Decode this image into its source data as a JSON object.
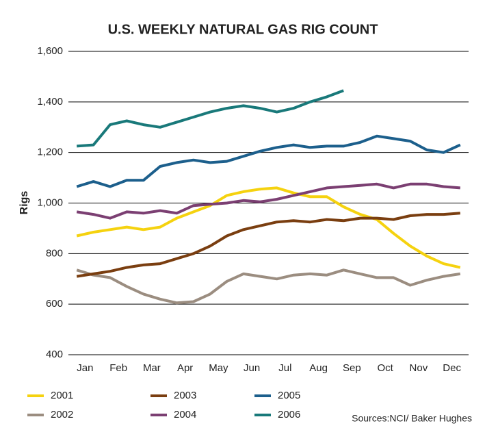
{
  "chart_data": {
    "type": "line",
    "title": "U.S. WEEKLY NATURAL GAS RIG COUNT",
    "y_label": "Rigs",
    "source": "Sources:NCI/ Baker Hughes",
    "xlim": [
      -0.5,
      23.5
    ],
    "xticks": [
      {
        "value": 0.5,
        "label": "Jan"
      },
      {
        "value": 2.5,
        "label": "Feb"
      },
      {
        "value": 4.5,
        "label": "Mar"
      },
      {
        "value": 6.5,
        "label": "Apr"
      },
      {
        "value": 8.5,
        "label": "May"
      },
      {
        "value": 10.5,
        "label": "Jun"
      },
      {
        "value": 12.5,
        "label": "Jul"
      },
      {
        "value": 14.5,
        "label": "Aug"
      },
      {
        "value": 16.5,
        "label": "Sep"
      },
      {
        "value": 18.5,
        "label": "Oct"
      },
      {
        "value": 20.5,
        "label": "Nov"
      },
      {
        "value": 22.5,
        "label": "Dec"
      }
    ],
    "ylim": [
      400,
      1600
    ],
    "yticks": [
      400,
      600,
      800,
      {
        "value": 1000,
        "label": "1,000"
      },
      {
        "value": 1200,
        "label": "1,200"
      },
      {
        "value": 1400,
        "label": "1,400"
      },
      {
        "value": 1600,
        "label": "1,600"
      }
    ],
    "grid": true,
    "legend": "bottom",
    "series": [
      {
        "name": "2001",
        "color": "#f5d20f",
        "values": [
          870,
          885,
          895,
          905,
          895,
          905,
          940,
          965,
          990,
          1030,
          1045,
          1055,
          1060,
          1040,
          1025,
          1025,
          985,
          955,
          935,
          880,
          830,
          790,
          760,
          745
        ]
      },
      {
        "name": "2002",
        "color": "#9b8d80",
        "values": [
          735,
          715,
          705,
          670,
          640,
          620,
          605,
          610,
          640,
          690,
          720,
          710,
          700,
          715,
          720,
          715,
          735,
          720,
          705,
          705,
          675,
          695,
          710,
          720
        ]
      },
      {
        "name": "2003",
        "color": "#7a3e10",
        "values": [
          710,
          720,
          730,
          745,
          755,
          760,
          780,
          800,
          830,
          870,
          895,
          910,
          925,
          930,
          925,
          935,
          930,
          940,
          940,
          935,
          950,
          955,
          955,
          960
        ]
      },
      {
        "name": "2004",
        "color": "#7b3f72",
        "values": [
          965,
          955,
          940,
          965,
          960,
          970,
          960,
          990,
          995,
          1000,
          1010,
          1005,
          1015,
          1030,
          1045,
          1060,
          1065,
          1070,
          1075,
          1060,
          1075,
          1075,
          1065,
          1060
        ]
      },
      {
        "name": "2005",
        "color": "#1c5f8c",
        "values": [
          1065,
          1085,
          1065,
          1090,
          1090,
          1145,
          1160,
          1170,
          1160,
          1165,
          1185,
          1205,
          1220,
          1230,
          1220,
          1225,
          1225,
          1240,
          1265,
          1255,
          1245,
          1210,
          1200,
          1230
        ]
      },
      {
        "name": "2006",
        "color": "#19797a",
        "values": [
          1225,
          1230,
          1310,
          1325,
          1310,
          1300,
          1320,
          1340,
          1360,
          1375,
          1385,
          1375,
          1360,
          1375,
          1400,
          1420,
          1445,
          null,
          null,
          null,
          null,
          null,
          null,
          null
        ]
      }
    ]
  }
}
